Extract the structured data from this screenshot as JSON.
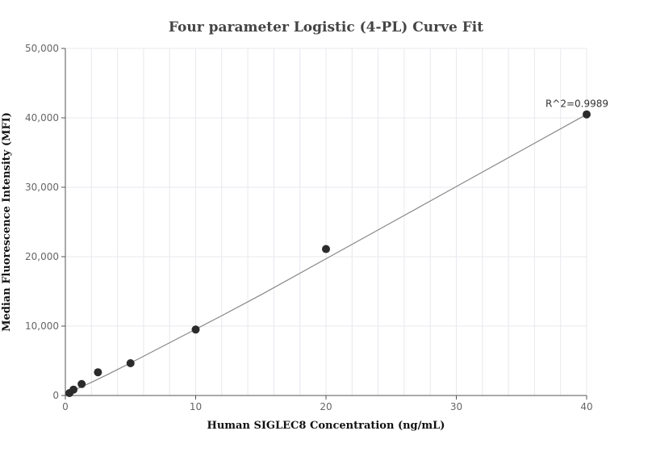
{
  "chart_data": {
    "type": "scatter",
    "title": "Four parameter Logistic (4-PL) Curve Fit",
    "xlabel": "Human SIGLEC8 Concentration (ng/mL)",
    "ylabel": "Median Fluorescence Intensity (MFI)",
    "xlim": [
      0,
      40
    ],
    "ylim": [
      0,
      50000
    ],
    "x_ticks": [
      0,
      10,
      20,
      30,
      40
    ],
    "x_tick_labels": [
      "0",
      "10",
      "20",
      "30",
      "40"
    ],
    "y_ticks": [
      0,
      10000,
      20000,
      30000,
      40000,
      50000
    ],
    "y_tick_labels": [
      "0",
      "10,000",
      "20,000",
      "30,000",
      "40,000",
      "50,000"
    ],
    "grid": true,
    "series": [
      {
        "x": [
          0.3125,
          0.625,
          1.25,
          2.5,
          5,
          10,
          20,
          40
        ],
        "values": [
          350,
          850,
          1650,
          3350,
          4650,
          9500,
          21100,
          40500
        ]
      }
    ],
    "fit_curve": {
      "x": [
        0,
        1,
        2,
        3,
        4,
        5,
        6,
        8,
        10,
        12,
        15,
        20,
        25,
        30,
        35,
        40
      ],
      "values": [
        300,
        1050,
        1900,
        2800,
        3750,
        4700,
        5650,
        7600,
        9550,
        11500,
        14500,
        19700,
        24900,
        30100,
        35300,
        40500
      ]
    },
    "annotation": "R^2=0.9989",
    "colors": {
      "points": "#2b2b2b",
      "curve": "#888888",
      "grid": "#e8e8ef",
      "axis": "#555555"
    }
  }
}
